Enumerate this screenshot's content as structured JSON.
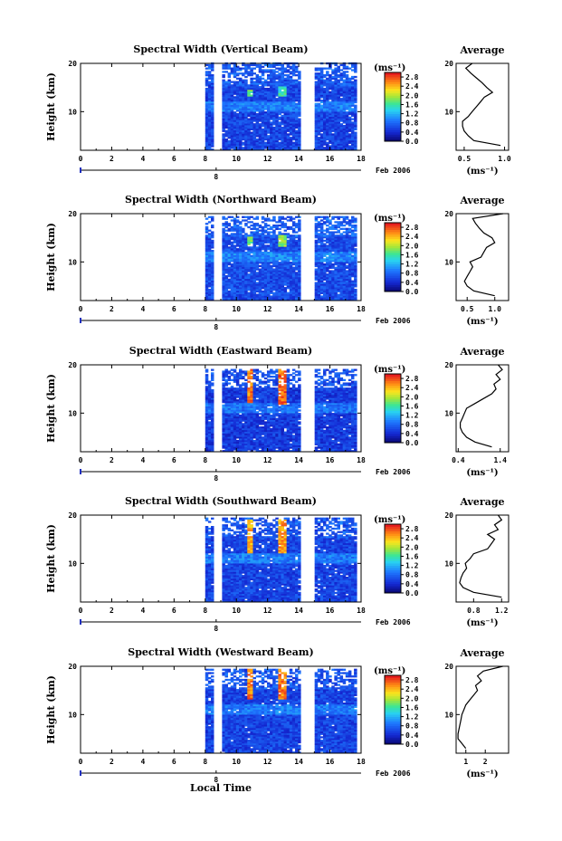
{
  "chart_data": [
    {
      "type": "heatmap",
      "title": "Spectral Width (Vertical Beam)",
      "ylabel": "Height (km)",
      "xlim": [
        0,
        18
      ],
      "ylim": [
        2,
        20
      ],
      "x_ticks": [
        "0",
        "2",
        "4",
        "6",
        "8",
        "10",
        "12",
        "14",
        "16",
        "18"
      ],
      "y_ticks": [
        "10",
        "20"
      ],
      "date_label": "Feb 2006",
      "day_label": "8",
      "colorbar": {
        "unit": "(ms⁻¹)",
        "ticks": [
          "0.0",
          "0.4",
          "0.8",
          "1.2",
          "1.6",
          "2.0",
          "2.4",
          "2.8"
        ],
        "range": [
          0,
          3.0
        ]
      },
      "data_gaps": [
        [
          8.7,
          9.0
        ],
        [
          14.2,
          15.0
        ]
      ],
      "data_start": 8.0,
      "data_end": 17.7,
      "top_height": 20,
      "background": 0.55,
      "hotspots": [
        {
          "x": 10.8,
          "y_from": 13,
          "y_to": 14.5,
          "value": 2.0
        },
        {
          "x": 12.8,
          "y_from": 13,
          "y_to": 15,
          "value": 1.8
        }
      ],
      "average": {
        "title": "Average",
        "xlabel": "(ms⁻¹)",
        "x_ticks": [
          "0.5",
          "1.0"
        ],
        "xlim": [
          0.4,
          1.05
        ],
        "y_ticks": [
          "10",
          "20"
        ],
        "height": [
          3,
          4,
          5,
          6,
          7,
          8,
          9,
          10,
          11,
          12,
          13,
          14,
          15,
          16,
          17,
          18,
          19,
          20
        ],
        "value": [
          0.95,
          0.62,
          0.55,
          0.5,
          0.48,
          0.48,
          0.55,
          0.6,
          0.65,
          0.7,
          0.75,
          0.85,
          0.78,
          0.72,
          0.65,
          0.58,
          0.52,
          0.6
        ]
      }
    },
    {
      "type": "heatmap",
      "title": "Spectral Width (Northward Beam)",
      "ylabel": "Height (km)",
      "xlim": [
        0,
        18
      ],
      "ylim": [
        2,
        20
      ],
      "x_ticks": [
        "0",
        "2",
        "4",
        "6",
        "8",
        "10",
        "12",
        "14",
        "16",
        "18"
      ],
      "y_ticks": [
        "10",
        "20"
      ],
      "date_label": "Feb 2006",
      "day_label": "8",
      "colorbar": {
        "unit": "(ms⁻¹)",
        "ticks": [
          "0.0",
          "0.4",
          "0.8",
          "1.2",
          "1.6",
          "2.0",
          "2.4",
          "2.8"
        ],
        "range": [
          0,
          3.0
        ]
      },
      "data_gaps": [
        [
          8.7,
          9.0
        ],
        [
          14.2,
          15.0
        ]
      ],
      "data_start": 8.0,
      "data_end": 17.7,
      "top_height": 19.5,
      "background": 0.6,
      "hotspots": [
        {
          "x": 10.8,
          "y_from": 13,
          "y_to": 15,
          "value": 2.0
        },
        {
          "x": 12.8,
          "y_from": 13,
          "y_to": 15.5,
          "value": 2.2
        }
      ],
      "average": {
        "title": "Average",
        "xlabel": "(ms⁻¹)",
        "x_ticks": [
          "0.5",
          "1.0"
        ],
        "xlim": [
          0.3,
          1.25
        ],
        "y_ticks": [
          "10",
          "20"
        ],
        "height": [
          3,
          4,
          5,
          6,
          7,
          8,
          9,
          10,
          11,
          12,
          13,
          14,
          15,
          16,
          17,
          18,
          19,
          20
        ],
        "value": [
          1.0,
          0.62,
          0.5,
          0.45,
          0.5,
          0.55,
          0.6,
          0.55,
          0.75,
          0.8,
          0.85,
          1.0,
          0.95,
          0.8,
          0.72,
          0.65,
          0.6,
          1.15
        ]
      }
    },
    {
      "type": "heatmap",
      "title": "Spectral Width (Eastward Beam)",
      "ylabel": "Height (km)",
      "xlim": [
        0,
        18
      ],
      "ylim": [
        2,
        20
      ],
      "x_ticks": [
        "0",
        "2",
        "4",
        "6",
        "8",
        "10",
        "12",
        "14",
        "16",
        "18"
      ],
      "y_ticks": [
        "10",
        "20"
      ],
      "date_label": "Feb 2006",
      "day_label": "8",
      "colorbar": {
        "unit": "(ms⁻¹)",
        "ticks": [
          "0.0",
          "0.4",
          "0.8",
          "1.2",
          "1.6",
          "2.0",
          "2.4",
          "2.8"
        ],
        "range": [
          0,
          3.0
        ]
      },
      "data_gaps": [
        [
          8.7,
          9.0
        ],
        [
          14.2,
          15.0
        ]
      ],
      "data_start": 8.0,
      "data_end": 17.7,
      "top_height": 19.0,
      "background": 0.5,
      "hotspots": [
        {
          "x": 10.8,
          "y_from": 12,
          "y_to": 19,
          "value": 2.9
        },
        {
          "x": 12.8,
          "y_from": 11.5,
          "y_to": 19.5,
          "value": 3.0
        }
      ],
      "average": {
        "title": "Average",
        "xlabel": "(ms⁻¹)",
        "x_ticks": [
          "0.4",
          "1.4"
        ],
        "xlim": [
          0.35,
          1.6
        ],
        "y_ticks": [
          "10",
          "20"
        ],
        "height": [
          3,
          4,
          5,
          6,
          7,
          8,
          9,
          10,
          11,
          12,
          13,
          14,
          15,
          16,
          17,
          18,
          19,
          20
        ],
        "value": [
          1.2,
          0.8,
          0.6,
          0.5,
          0.45,
          0.45,
          0.5,
          0.55,
          0.6,
          0.8,
          1.0,
          1.2,
          1.3,
          1.25,
          1.4,
          1.3,
          1.45,
          1.35
        ]
      }
    },
    {
      "type": "heatmap",
      "title": "Spectral Width (Southward Beam)",
      "ylabel": "Height (km)",
      "xlim": [
        0,
        18
      ],
      "ylim": [
        2,
        20
      ],
      "x_ticks": [
        "0",
        "2",
        "4",
        "6",
        "8",
        "10",
        "12",
        "14",
        "16",
        "18"
      ],
      "y_ticks": [
        "10",
        "20"
      ],
      "date_label": "Feb 2006",
      "day_label": "8",
      "colorbar": {
        "unit": "(ms⁻¹)",
        "ticks": [
          "0.0",
          "0.4",
          "0.8",
          "1.2",
          "1.6",
          "2.0",
          "2.4",
          "2.8"
        ],
        "range": [
          0,
          3.0
        ]
      },
      "data_gaps": [
        [
          8.7,
          9.0
        ],
        [
          14.2,
          15.0
        ]
      ],
      "data_start": 8.0,
      "data_end": 17.7,
      "top_height": 19.5,
      "background": 0.55,
      "hotspots": [
        {
          "x": 10.8,
          "y_from": 12,
          "y_to": 19,
          "value": 2.7
        },
        {
          "x": 12.8,
          "y_from": 12,
          "y_to": 19,
          "value": 2.8
        }
      ],
      "average": {
        "title": "Average",
        "xlabel": "(ms⁻¹)",
        "x_ticks": [
          "0.8",
          "1.2"
        ],
        "xlim": [
          0.55,
          1.3
        ],
        "y_ticks": [
          "10",
          "20"
        ],
        "height": [
          3,
          4,
          5,
          6,
          7,
          8,
          9,
          10,
          11,
          12,
          13,
          14,
          15,
          16,
          17,
          18,
          19,
          20
        ],
        "value": [
          1.2,
          0.8,
          0.65,
          0.6,
          0.62,
          0.65,
          0.7,
          0.68,
          0.75,
          0.8,
          1.0,
          1.05,
          1.1,
          1.0,
          1.15,
          1.1,
          1.2,
          1.15
        ]
      }
    },
    {
      "type": "heatmap",
      "title": "Spectral Width (Westward Beam)",
      "ylabel": "Height (km)",
      "xlabel": "Local Time",
      "xlim": [
        0,
        18
      ],
      "ylim": [
        2,
        20
      ],
      "x_ticks": [
        "0",
        "2",
        "4",
        "6",
        "8",
        "10",
        "12",
        "14",
        "16",
        "18"
      ],
      "y_ticks": [
        "10",
        "20"
      ],
      "date_label": "Feb 2006",
      "day_label": "8",
      "colorbar": {
        "unit": "(ms⁻¹)",
        "ticks": [
          "0.0",
          "0.4",
          "0.8",
          "1.2",
          "1.6",
          "2.0",
          "2.4",
          "2.8"
        ],
        "range": [
          0,
          3.0
        ]
      },
      "data_gaps": [
        [
          8.7,
          9.0
        ],
        [
          14.2,
          15.0
        ]
      ],
      "data_start": 8.0,
      "data_end": 17.7,
      "top_height": 19.5,
      "background": 0.55,
      "hotspots": [
        {
          "x": 10.8,
          "y_from": 13,
          "y_to": 20,
          "value": 2.9
        },
        {
          "x": 12.8,
          "y_from": 13,
          "y_to": 19.5,
          "value": 2.9
        }
      ],
      "average": {
        "title": "Average",
        "xlabel": "(ms⁻¹)",
        "x_ticks": [
          "1",
          "2"
        ],
        "xlim": [
          0.5,
          3.2
        ],
        "y_ticks": [
          "10",
          "20"
        ],
        "height": [
          3,
          4,
          5,
          6,
          7,
          8,
          9,
          10,
          11,
          12,
          13,
          14,
          15,
          16,
          17,
          18,
          19,
          20
        ],
        "value": [
          1.0,
          0.8,
          0.6,
          0.6,
          0.65,
          0.7,
          0.75,
          0.8,
          0.9,
          1.0,
          1.2,
          1.4,
          1.6,
          1.5,
          1.8,
          1.6,
          1.9,
          2.9
        ]
      }
    }
  ]
}
